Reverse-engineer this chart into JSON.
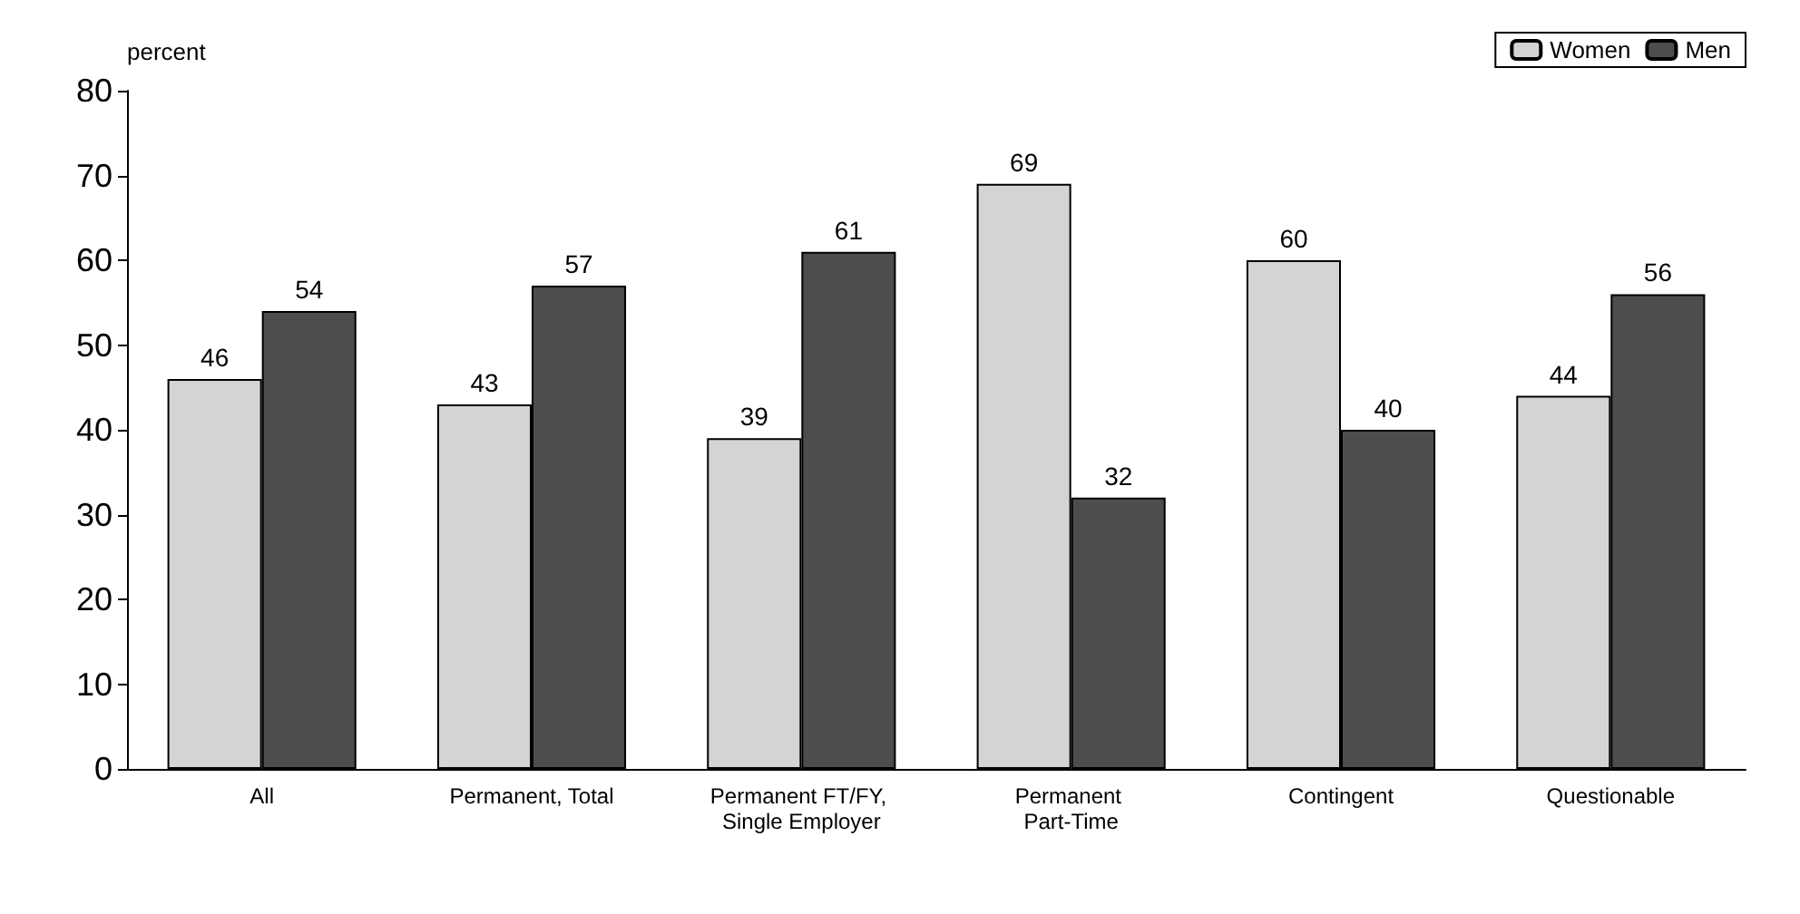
{
  "chart_data": {
    "type": "bar",
    "ylabel": "percent",
    "categories": [
      "All",
      "Permanent, Total",
      "Permanent FT/FY, Single Employer",
      "Permanent Part-Time",
      "Contingent",
      "Questionable"
    ],
    "series": [
      {
        "name": "Women",
        "color": "#d4d4d4",
        "values": [
          46,
          43,
          39,
          69,
          60,
          44
        ]
      },
      {
        "name": "Men",
        "color": "#4d4d4d",
        "values": [
          54,
          57,
          61,
          32,
          40,
          56
        ]
      }
    ],
    "ylim": [
      0,
      80
    ],
    "yticks": [
      0,
      10,
      20,
      30,
      40,
      50,
      60,
      70,
      80
    ],
    "grid": false,
    "legend": "top right",
    "data_labels": true
  }
}
